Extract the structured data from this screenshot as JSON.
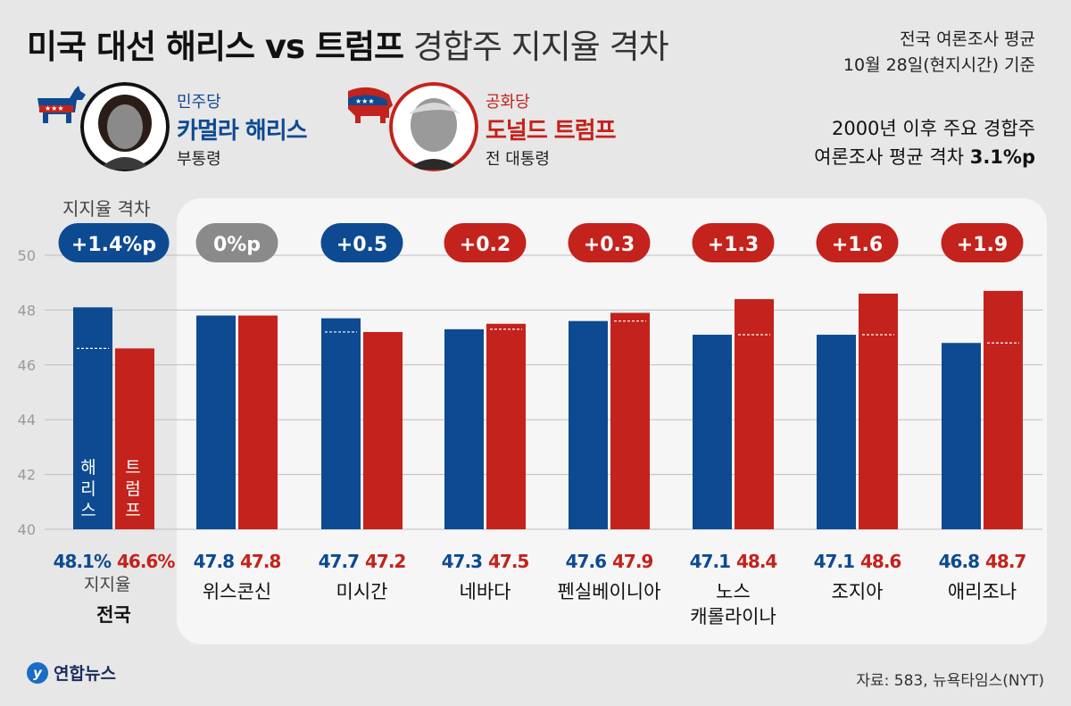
{
  "header": {
    "title_bold": "미국 대선 해리스 vs 트럼프",
    "title_light": "경합주 지지율 격차",
    "basis_line1": "전국 여론조사 평균",
    "basis_line2": "10월 28일(현지시간) 기준"
  },
  "candidates": {
    "dem": {
      "party": "민주당",
      "name": "카멀라 해리스",
      "role": "부통령"
    },
    "rep": {
      "party": "공화당",
      "name": "도널드 트럼프",
      "role": "전 대통령"
    }
  },
  "note": {
    "line1": "2000년 이후 주요 경합주",
    "line2_prefix": "여론조사 평균 격차 ",
    "line2_value": "3.1%p"
  },
  "labels": {
    "gap": "지지율 격차",
    "legend_harris": "해리스",
    "legend_trump": "트럼프",
    "support": "지지율"
  },
  "footer": {
    "brand": "연합뉴스",
    "source": "자료: 583, 뉴욕타임스(NYT)"
  },
  "colors": {
    "harris": "#0d4a91",
    "trump": "#c4221c",
    "tie": "#8a8a8a"
  },
  "chart_data": {
    "type": "bar",
    "ylim": [
      40,
      50
    ],
    "yticks": [
      40,
      42,
      44,
      46,
      48,
      50
    ],
    "categories": [
      "전국",
      "위스콘신",
      "미시간",
      "네바다",
      "펜실베이니아",
      "노스\n캐롤라이나",
      "조지아",
      "애리조나"
    ],
    "series": [
      {
        "name": "해리스",
        "values": [
          48.1,
          47.8,
          47.7,
          47.3,
          47.6,
          47.1,
          47.1,
          46.8
        ],
        "value_labels": [
          "48.1%",
          "47.8",
          "47.7",
          "47.3",
          "47.6",
          "47.1",
          "47.1",
          "46.8"
        ]
      },
      {
        "name": "트럼프",
        "values": [
          46.6,
          47.8,
          47.2,
          47.5,
          47.9,
          48.4,
          48.6,
          48.7
        ],
        "value_labels": [
          "46.6%",
          "47.8",
          "47.2",
          "47.5",
          "47.9",
          "48.4",
          "48.6",
          "48.7"
        ]
      }
    ],
    "gaps": [
      {
        "text": "+1.4%p",
        "leader": "harris"
      },
      {
        "text": "0%p",
        "leader": "tie"
      },
      {
        "text": "+0.5",
        "leader": "harris"
      },
      {
        "text": "+0.2",
        "leader": "trump"
      },
      {
        "text": "+0.3",
        "leader": "trump"
      },
      {
        "text": "+1.3",
        "leader": "trump"
      },
      {
        "text": "+1.6",
        "leader": "trump"
      },
      {
        "text": "+1.9",
        "leader": "trump"
      }
    ]
  }
}
